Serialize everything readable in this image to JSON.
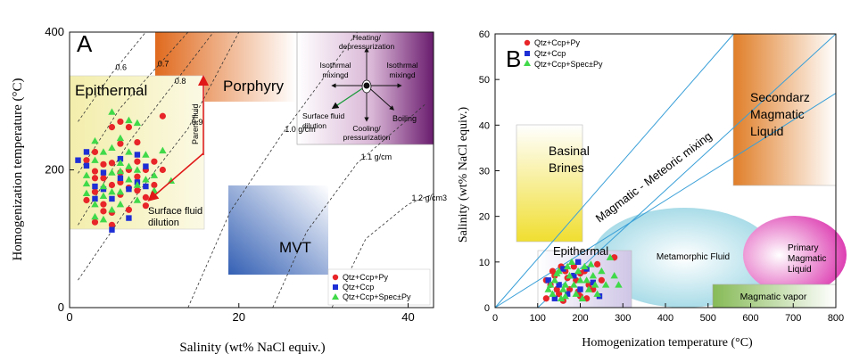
{
  "chart_data": [
    {
      "panel_label": "A",
      "type": "scatter",
      "xlabel": "Salinity (wt% NaCl equiv.)",
      "ylabel": "Homogenization temperature (°C)",
      "xlim": [
        0,
        43
      ],
      "ylim": [
        0,
        400
      ],
      "x_ticks": [
        0,
        20,
        40
      ],
      "y_ticks": [
        0,
        200,
        400
      ],
      "legend_position": "bottom-right",
      "legend": [
        {
          "label": "Qtz+Ccp+Py",
          "marker": "circle",
          "color": "#e8262a"
        },
        {
          "label": "Qtz+Ccp",
          "marker": "square",
          "color": "#1f2fd6"
        },
        {
          "label": "Qtz+Ccp+Spec±Py",
          "marker": "triangle",
          "color": "#3fd94a"
        }
      ],
      "density_lines": [
        {
          "label": "0.6",
          "points": [
            [
              1,
              270
            ],
            [
              5,
              340
            ],
            [
              9,
              400
            ]
          ]
        },
        {
          "label": "0.7",
          "points": [
            [
              1,
              195
            ],
            [
              6,
              290
            ],
            [
              10,
              345
            ],
            [
              14,
              400
            ]
          ]
        },
        {
          "label": "0.8",
          "points": [
            [
              1,
              120
            ],
            [
              7,
              240
            ],
            [
              12,
              320
            ],
            [
              17,
              400
            ]
          ]
        },
        {
          "label": "0.9",
          "points": [
            [
              1,
              40
            ],
            [
              8,
              165
            ],
            [
              14,
              260
            ],
            [
              20,
              400
            ]
          ]
        },
        {
          "label": "1.0 g/cm",
          "points": [
            [
              14,
              0
            ],
            [
              19,
              140
            ],
            [
              25,
              250
            ],
            [
              34,
              400
            ]
          ]
        },
        {
          "label": "1.1 g/cm",
          "points": [
            [
              24,
              0
            ],
            [
              28,
              110
            ],
            [
              34,
              210
            ],
            [
              42,
              295
            ]
          ]
        },
        {
          "label": "1.2 g/cm3",
          "points": [
            [
              31,
              0
            ],
            [
              35,
              100
            ],
            [
              40,
              150
            ],
            [
              43,
              165
            ]
          ]
        }
      ],
      "regions": [
        {
          "label": "Epithermal",
          "x": [
            0,
            17
          ],
          "y": [
            115,
            335
          ],
          "color": "#f5f0b0"
        },
        {
          "label": "Porphyry",
          "x": [
            10.5,
            28
          ],
          "y": [
            300,
            400
          ],
          "color": "#e8742a"
        },
        {
          "label": "MVT",
          "x": [
            20,
            29
          ],
          "y": [
            50,
            178
          ],
          "color": "#4a78c0"
        }
      ],
      "annotations": {
        "parent_fluid": "Parent fluid",
        "surface_fluid_dilution": "Surface fluid dilution",
        "inset_labels": {
          "heating": "Heating/ depressurization",
          "isothermal_left": "Isothrmal mixingd",
          "isothermal_right": "Isothrmal mixingd",
          "surface": "Surface fluid dilution",
          "cooling": "Cooling/ pressurization",
          "boiling": "Boiling"
        }
      },
      "series": [
        {
          "name": "Qtz+Ccp+Py",
          "points": [
            [
              2,
              214
            ],
            [
              3,
              198
            ],
            [
              3,
              168
            ],
            [
              3,
              124
            ],
            [
              4,
              188
            ],
            [
              4,
              150
            ],
            [
              5,
              210
            ],
            [
              5,
              178
            ],
            [
              5,
              120
            ],
            [
              6,
              196
            ],
            [
              6,
              164
            ],
            [
              7,
              200
            ],
            [
              7,
              142
            ],
            [
              8,
              212
            ],
            [
              8,
              170
            ],
            [
              9,
              200
            ],
            [
              9,
              148
            ],
            [
              10,
              178
            ],
            [
              3,
              226
            ],
            [
              4,
              140
            ],
            [
              6,
              238
            ],
            [
              6,
              182
            ],
            [
              7,
              262
            ],
            [
              8,
              240
            ],
            [
              9,
              160
            ],
            [
              11,
              200
            ],
            [
              11,
              278
            ],
            [
              2,
              156
            ],
            [
              4,
              208
            ],
            [
              5,
              138
            ],
            [
              7,
              174
            ],
            [
              5,
              262
            ],
            [
              3,
              188
            ],
            [
              8,
              190
            ],
            [
              10,
              212
            ],
            [
              6,
              270
            ]
          ]
        },
        {
          "name": "Qtz+Ccp",
          "points": [
            [
              1,
              214
            ],
            [
              2,
              206
            ],
            [
              3,
              176
            ],
            [
              4,
              196
            ],
            [
              5,
              158
            ],
            [
              6,
              188
            ],
            [
              7,
              172
            ],
            [
              8,
              182
            ],
            [
              9,
              205
            ],
            [
              2,
              226
            ],
            [
              3,
              158
            ],
            [
              6,
              216
            ],
            [
              7,
              130
            ],
            [
              9,
              176
            ],
            [
              5,
              113
            ],
            [
              4,
              172
            ],
            [
              8,
              222
            ]
          ]
        },
        {
          "name": "Qtz+Ccp+Spec±Py",
          "points": [
            [
              2,
              192
            ],
            [
              2,
              166
            ],
            [
              3,
              214
            ],
            [
              3,
              150
            ],
            [
              4,
              176
            ],
            [
              4,
              226
            ],
            [
              5,
              196
            ],
            [
              5,
              142
            ],
            [
              6,
              168
            ],
            [
              6,
              210
            ],
            [
              7,
              186
            ],
            [
              7,
              226
            ],
            [
              8,
              156
            ],
            [
              8,
              200
            ],
            [
              9,
              186
            ],
            [
              10,
              170
            ],
            [
              11,
              228
            ],
            [
              12,
              184
            ],
            [
              3,
              132
            ],
            [
              4,
              128
            ],
            [
              5,
              284
            ],
            [
              6,
              246
            ],
            [
              7,
              272
            ],
            [
              8,
              268
            ],
            [
              9,
              222
            ],
            [
              10,
              192
            ],
            [
              4,
              162
            ],
            [
              6,
              150
            ],
            [
              2,
              180
            ],
            [
              5,
              232
            ],
            [
              7,
              205
            ],
            [
              3,
              242
            ],
            [
              6,
              198
            ],
            [
              8,
              178
            ],
            [
              5,
              168
            ]
          ]
        }
      ]
    },
    {
      "panel_label": "B",
      "type": "scatter",
      "xlabel": "Homogenization temperature (°C)",
      "ylabel": "Salinity (wt% NaCl equiv.)",
      "xlim": [
        0,
        800
      ],
      "ylim": [
        0,
        60
      ],
      "x_ticks": [
        0,
        100,
        200,
        300,
        400,
        500,
        600,
        700,
        800
      ],
      "y_ticks": [
        0,
        10,
        20,
        30,
        40,
        50,
        60
      ],
      "legend_position": "top-left",
      "legend": [
        {
          "label": "Qtz+Ccp+Py",
          "marker": "circle",
          "color": "#e8262a"
        },
        {
          "label": "Qtz+Ccp",
          "marker": "square",
          "color": "#1f2fd6"
        },
        {
          "label": "Qtz+Ccp+Spec±Py",
          "marker": "triangle",
          "color": "#3fd94a"
        }
      ],
      "regions": [
        {
          "label": "Basinal Brines",
          "x": [
            50,
            205
          ],
          "y": [
            14.5,
            40.5
          ],
          "color": "#f0e040"
        },
        {
          "label": "Secondarz Magmatic Liquid",
          "x": [
            560,
            800
          ],
          "y": [
            27,
            60
          ],
          "color": "#e8842a"
        },
        {
          "label": "Metamorphic Fluid",
          "shape": "ellipse",
          "center": [
            445,
            11
          ],
          "radii": [
            215,
            11
          ],
          "color": "#bfe6ee"
        },
        {
          "label": "Primary Magmatic Liquid",
          "shape": "ellipse",
          "center": [
            700,
            11.5
          ],
          "radii": [
            120,
            8.5
          ],
          "color": "#e050b8"
        },
        {
          "label": "Magmatic vapor",
          "x": [
            510,
            800
          ],
          "y": [
            0,
            5
          ],
          "color": "#8cc060"
        },
        {
          "label": "Epithermal",
          "x": [
            100,
            320
          ],
          "y": [
            0,
            12.5
          ],
          "color": "#ddd8ee"
        }
      ],
      "annotations": {
        "mixing_label": "Magmatic - Meteoric mixing"
      },
      "mixing_lines": [
        [
          [
            0,
            0
          ],
          [
            560,
            60
          ]
        ],
        [
          [
            0,
            0
          ],
          [
            800,
            47
          ]
        ],
        [
          [
            100,
            0
          ],
          [
            800,
            60
          ]
        ]
      ],
      "series": [
        {
          "name": "Qtz+Ccp+Py",
          "points": [
            [
              120,
              2
            ],
            [
              130,
              5
            ],
            [
              140,
              7
            ],
            [
              150,
              3
            ],
            [
              165,
              8
            ],
            [
              175,
              4
            ],
            [
              190,
              6
            ],
            [
              200,
              2.5
            ],
            [
              210,
              8
            ],
            [
              230,
              4
            ],
            [
              250,
              6
            ],
            [
              280,
              11
            ],
            [
              135,
              8
            ],
            [
              160,
              1.5
            ],
            [
              185,
              9
            ],
            [
              220,
              5
            ],
            [
              145,
              4
            ],
            [
              170,
              6.5
            ],
            [
              240,
              9.5
            ],
            [
              195,
              3.5
            ],
            [
              120,
              6
            ],
            [
              155,
              9
            ],
            [
              200,
              7.5
            ],
            [
              215,
              2
            ]
          ]
        },
        {
          "name": "Qtz+Ccp",
          "points": [
            [
              125,
              6
            ],
            [
              150,
              5
            ],
            [
              170,
              3
            ],
            [
              185,
              7
            ],
            [
              200,
              4
            ],
            [
              215,
              8.5
            ],
            [
              230,
              5.5
            ],
            [
              245,
              2.5
            ],
            [
              160,
              8.5
            ],
            [
              140,
              2
            ],
            [
              195,
              10
            ]
          ]
        },
        {
          "name": "Qtz+Ccp+Spec±Py",
          "points": [
            [
              125,
              4
            ],
            [
              140,
              6
            ],
            [
              150,
              8
            ],
            [
              155,
              2
            ],
            [
              165,
              5
            ],
            [
              175,
              7
            ],
            [
              180,
              10
            ],
            [
              190,
              3
            ],
            [
              200,
              6
            ],
            [
              210,
              9
            ],
            [
              220,
              4
            ],
            [
              230,
              7
            ],
            [
              240,
              3
            ],
            [
              260,
              5
            ],
            [
              270,
              11
            ],
            [
              290,
              5
            ],
            [
              135,
              3
            ],
            [
              145,
              7.5
            ],
            [
              160,
              4
            ],
            [
              170,
              9
            ],
            [
              185,
              5
            ],
            [
              205,
              2
            ],
            [
              215,
              6
            ],
            [
              225,
              9.5
            ],
            [
              250,
              8
            ],
            [
              280,
              7
            ],
            [
              130,
              5
            ],
            [
              195,
              8
            ],
            [
              165,
              2.5
            ],
            [
              235,
              5
            ]
          ]
        }
      ]
    }
  ]
}
